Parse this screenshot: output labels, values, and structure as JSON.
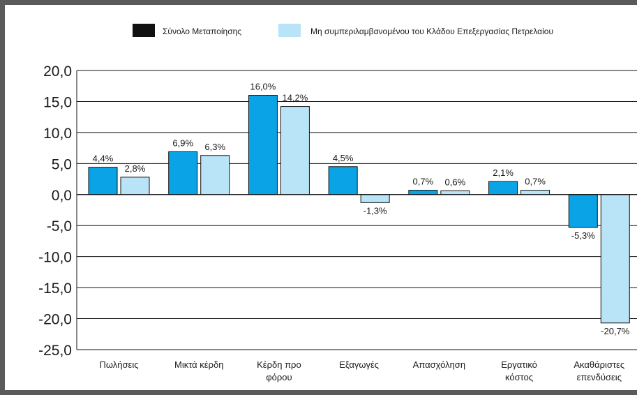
{
  "chart_data": {
    "type": "bar",
    "categories": [
      [
        "Πωλήσεις"
      ],
      [
        "Μικτά κέρδη"
      ],
      [
        "Κέρδη προ",
        "φόρου"
      ],
      [
        "Εξαγωγές"
      ],
      [
        "Απασχόληση"
      ],
      [
        "Εργατικό",
        "κόστος"
      ],
      [
        "Ακαθάριστες",
        "επενδύσεις"
      ]
    ],
    "series": [
      {
        "name": "Σύνολο Μεταποίησης",
        "values": [
          4.4,
          6.9,
          16.0,
          4.5,
          0.7,
          2.1,
          -5.3
        ],
        "labels": [
          "4,4%",
          "6,9%",
          "16,0%",
          "4,5%",
          "0,7%",
          "2,1%",
          "-5,3%"
        ]
      },
      {
        "name": "Μη συμπεριλαμβανομένου του Κλάδου Επεξεργασίας Πετρελαίου",
        "values": [
          2.8,
          6.3,
          14.2,
          -1.3,
          0.6,
          0.7,
          -20.7
        ],
        "labels": [
          "2,8%",
          "6,3%",
          "14,2%",
          "-1,3%",
          "0,6%",
          "0,7%",
          "-20,7%"
        ]
      }
    ],
    "ylim": [
      -25,
      20
    ],
    "yticks": [
      20,
      15,
      10,
      5,
      0,
      -5,
      -10,
      -15,
      -20,
      -25
    ],
    "ytick_labels": [
      "20,0",
      "15,0",
      "10,0",
      "5,0",
      "0,0",
      "-5,0",
      "-10,0",
      "-15,0",
      "-20,0",
      "-25,0"
    ],
    "grid": true,
    "legend_position": "top",
    "colors": {
      "series1_fill": "#0aa3e6",
      "series2_fill": "#b9e3f7",
      "legend1_swatch": "#111111",
      "legend2_swatch": "#b9e3f7",
      "outline": "#111111",
      "grid": "#111111"
    }
  }
}
